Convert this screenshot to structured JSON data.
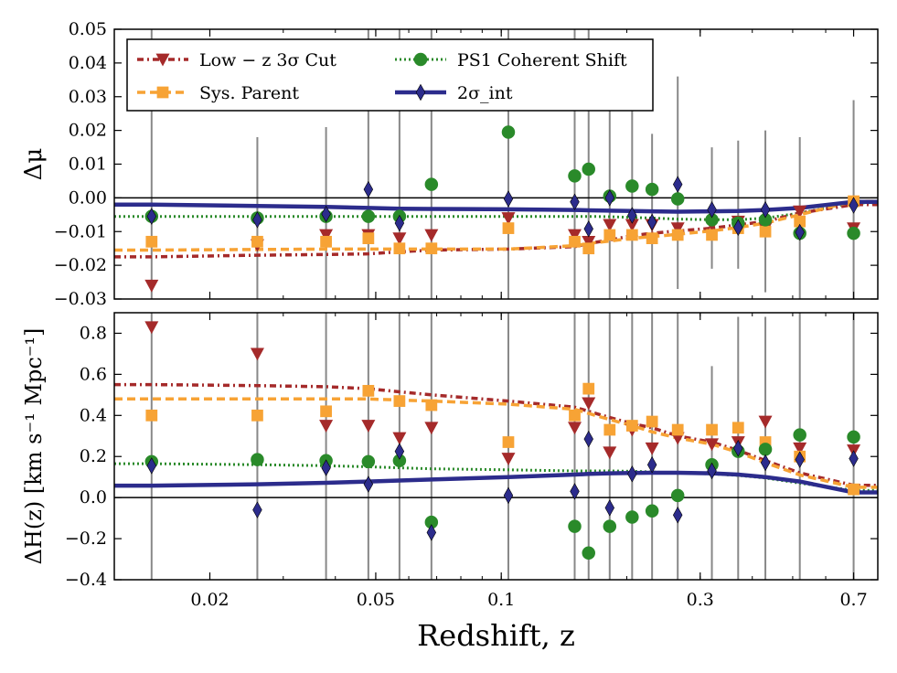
{
  "chart_data": [
    {
      "type": "scatter",
      "panel": "top",
      "ylabel": "Δμ",
      "ylim": [
        -0.03,
        0.05
      ],
      "yticks": [
        -0.03,
        -0.02,
        -0.01,
        0.0,
        0.01,
        0.02,
        0.03,
        0.04,
        0.05
      ],
      "ytick_labels": [
        "−0.03",
        "−0.02",
        "−0.01",
        "0.00",
        "0.01",
        "0.02",
        "0.03",
        "0.04",
        "0.05"
      ],
      "x": [
        0.0145,
        0.026,
        0.038,
        0.048,
        0.057,
        0.068,
        0.104,
        0.15,
        0.162,
        0.182,
        0.206,
        0.23,
        0.265,
        0.32,
        0.37,
        0.43,
        0.52,
        0.7
      ],
      "errorbars": {
        "lower": [
          -0.03,
          -0.03,
          -0.03,
          -0.03,
          -0.03,
          -0.03,
          -0.03,
          -0.03,
          -0.03,
          -0.03,
          -0.03,
          -0.03,
          -0.027,
          -0.021,
          -0.021,
          -0.028,
          -0.03,
          -0.03
        ],
        "upper": [
          0.05,
          0.018,
          0.021,
          0.05,
          0.05,
          0.05,
          0.05,
          0.05,
          0.05,
          0.026,
          0.029,
          0.019,
          0.036,
          0.015,
          0.017,
          0.02,
          0.018,
          0.029
        ]
      },
      "series": [
        {
          "name": "Low − z 3σ Cut",
          "marker": "triangle-down",
          "color": "#a52a2a",
          "linestyle": "dashdot",
          "values": [
            -0.026,
            -0.014,
            -0.011,
            -0.011,
            -0.012,
            -0.011,
            -0.006,
            -0.011,
            -0.013,
            -0.008,
            -0.008,
            -0.008,
            -0.009,
            -0.008,
            -0.007,
            -0.009,
            -0.004,
            -0.009
          ],
          "trend": [
            -0.0175,
            -0.017,
            -0.0168,
            -0.0166,
            -0.016,
            -0.0155,
            -0.0152,
            -0.0145,
            -0.0135,
            -0.0125,
            -0.0112,
            -0.0105,
            -0.0098,
            -0.009,
            -0.008,
            -0.007,
            -0.0045,
            -0.002
          ]
        },
        {
          "name": "Sys. Parent",
          "marker": "square",
          "color": "#f7a335",
          "linestyle": "dashed",
          "values": [
            -0.013,
            -0.013,
            -0.013,
            -0.012,
            -0.015,
            -0.015,
            -0.009,
            -0.013,
            -0.015,
            -0.011,
            -0.011,
            -0.012,
            -0.011,
            -0.011,
            -0.009,
            -0.01,
            -0.007,
            -0.001
          ],
          "trend": [
            -0.0155,
            -0.0153,
            -0.0152,
            -0.0152,
            -0.0152,
            -0.0152,
            -0.0152,
            -0.0142,
            -0.0135,
            -0.0128,
            -0.012,
            -0.0115,
            -0.0108,
            -0.0098,
            -0.0088,
            -0.0075,
            -0.005,
            -0.001
          ]
        },
        {
          "name": "PS1 Coherent Shift",
          "marker": "circle",
          "color": "#2a8a2a",
          "linestyle": "dotted",
          "values": [
            -0.0055,
            -0.006,
            -0.0055,
            -0.0055,
            -0.0055,
            0.004,
            0.0195,
            0.0065,
            0.0085,
            0.0005,
            0.0035,
            0.0025,
            -0.0003,
            -0.0065,
            -0.0075,
            -0.0065,
            -0.0105,
            -0.0105
          ],
          "trend": [
            -0.0055,
            -0.0055,
            -0.0055,
            -0.0055,
            -0.0055,
            -0.0055,
            -0.0055,
            -0.0055,
            -0.0055,
            -0.0056,
            -0.0058,
            -0.006,
            -0.0063,
            -0.0065,
            -0.0065,
            -0.006,
            -0.0045,
            -0.0015
          ]
        },
        {
          "name": "2σ_int",
          "marker": "diamond",
          "color": "#2c2c8c",
          "linestyle": "solid",
          "values": [
            -0.0055,
            -0.0065,
            -0.0048,
            0.0025,
            -0.0075,
            null,
            -0.0003,
            -0.0012,
            -0.0092,
            0.0,
            -0.0052,
            -0.0072,
            0.004,
            -0.0035,
            -0.0088,
            -0.0035,
            -0.0102,
            -0.0022
          ],
          "trend": [
            -0.002,
            -0.0024,
            -0.0027,
            -0.003,
            -0.0032,
            -0.0033,
            -0.0034,
            -0.0036,
            -0.0037,
            -0.0038,
            -0.0039,
            -0.004,
            -0.0041,
            -0.004,
            -0.0039,
            -0.0036,
            -0.003,
            -0.0012
          ]
        }
      ]
    },
    {
      "type": "scatter",
      "panel": "bottom",
      "ylabel": "ΔH(z) [km s⁻¹ Mpc⁻¹]",
      "ylim": [
        -0.4,
        0.9
      ],
      "yticks": [
        -0.4,
        -0.2,
        0.0,
        0.2,
        0.4,
        0.6,
        0.8
      ],
      "ytick_labels": [
        "−0.4",
        "−0.2",
        "0.0",
        "0.2",
        "0.4",
        "0.6",
        "0.8"
      ],
      "xlabel": "Redshift, z",
      "xlim": [
        0.0118,
        0.8
      ],
      "xscale": "log",
      "xticks": [
        0.02,
        0.05,
        0.1,
        0.3,
        0.7
      ],
      "xtick_labels": [
        "0.02",
        "0.05",
        "0.1",
        "0.3",
        "0.7"
      ],
      "x": [
        0.0145,
        0.026,
        0.038,
        0.048,
        0.057,
        0.068,
        0.104,
        0.15,
        0.162,
        0.182,
        0.206,
        0.23,
        0.265,
        0.32,
        0.37,
        0.43,
        0.52,
        0.7
      ],
      "errorbars": {
        "lower": [
          -0.4,
          -0.4,
          -0.4,
          -0.4,
          -0.4,
          -0.4,
          -0.4,
          -0.4,
          -0.4,
          -0.4,
          -0.4,
          -0.4,
          -0.4,
          -0.4,
          -0.4,
          -0.4,
          -0.4,
          -0.4
        ],
        "upper": [
          0.9,
          0.9,
          0.9,
          0.9,
          0.9,
          0.9,
          0.9,
          0.9,
          0.9,
          0.9,
          0.9,
          0.9,
          0.9,
          0.64,
          0.88,
          0.88,
          0.9,
          0.9
        ]
      },
      "series": [
        {
          "name": "Low − z 3σ Cut",
          "marker": "triangle-down",
          "color": "#a52a2a",
          "linestyle": "dashdot",
          "values": [
            0.83,
            0.7,
            0.35,
            0.35,
            0.29,
            0.34,
            0.19,
            0.34,
            0.46,
            0.22,
            0.33,
            0.24,
            0.29,
            0.26,
            0.27,
            0.37,
            0.24,
            0.23
          ],
          "trend": [
            0.55,
            0.545,
            0.54,
            0.53,
            0.515,
            0.5,
            0.47,
            0.44,
            0.42,
            0.39,
            0.36,
            0.34,
            0.3,
            0.27,
            0.23,
            0.18,
            0.12,
            0.06
          ]
        },
        {
          "name": "Sys. Parent",
          "marker": "square",
          "color": "#f7a335",
          "linestyle": "dashed",
          "values": [
            0.4,
            0.4,
            0.42,
            0.52,
            0.47,
            0.45,
            0.27,
            0.4,
            0.53,
            0.33,
            0.35,
            0.37,
            0.33,
            0.33,
            0.34,
            0.27,
            0.2,
            0.04
          ],
          "trend": [
            0.48,
            0.48,
            0.48,
            0.48,
            0.475,
            0.47,
            0.455,
            0.43,
            0.41,
            0.38,
            0.35,
            0.32,
            0.29,
            0.26,
            0.22,
            0.17,
            0.11,
            0.05
          ]
        },
        {
          "name": "PS1 Coherent Shift",
          "marker": "circle",
          "color": "#2a8a2a",
          "linestyle": "dotted",
          "values": [
            0.175,
            0.185,
            0.18,
            0.175,
            0.18,
            -0.12,
            null,
            -0.14,
            -0.27,
            -0.14,
            -0.095,
            -0.065,
            0.01,
            0.16,
            0.225,
            0.235,
            0.305,
            0.295
          ],
          "trend": [
            0.165,
            0.16,
            0.155,
            0.15,
            0.145,
            0.14,
            0.135,
            0.13,
            0.13,
            0.13,
            0.128,
            0.125,
            0.12,
            0.115,
            0.108,
            0.095,
            0.07,
            0.035
          ]
        },
        {
          "name": "2σ_int",
          "marker": "diamond",
          "color": "#2c2c8c",
          "linestyle": "solid",
          "values": [
            0.155,
            -0.06,
            0.145,
            0.065,
            0.225,
            -0.17,
            0.01,
            0.03,
            0.285,
            -0.05,
            0.115,
            0.16,
            -0.085,
            0.13,
            0.24,
            0.17,
            0.185,
            0.19
          ],
          "trend": [
            0.058,
            0.065,
            0.072,
            0.078,
            0.083,
            0.088,
            0.1,
            0.112,
            0.115,
            0.118,
            0.12,
            0.121,
            0.121,
            0.118,
            0.112,
            0.1,
            0.078,
            0.025
          ]
        }
      ]
    }
  ],
  "legend": {
    "placement": "top-left",
    "entries": [
      "Low − z 3σ Cut",
      "Sys. Parent",
      "PS1 Coherent Shift",
      "2σ_int"
    ]
  },
  "colors": {
    "errorbar": "#888888",
    "zero_line": "#000000"
  }
}
